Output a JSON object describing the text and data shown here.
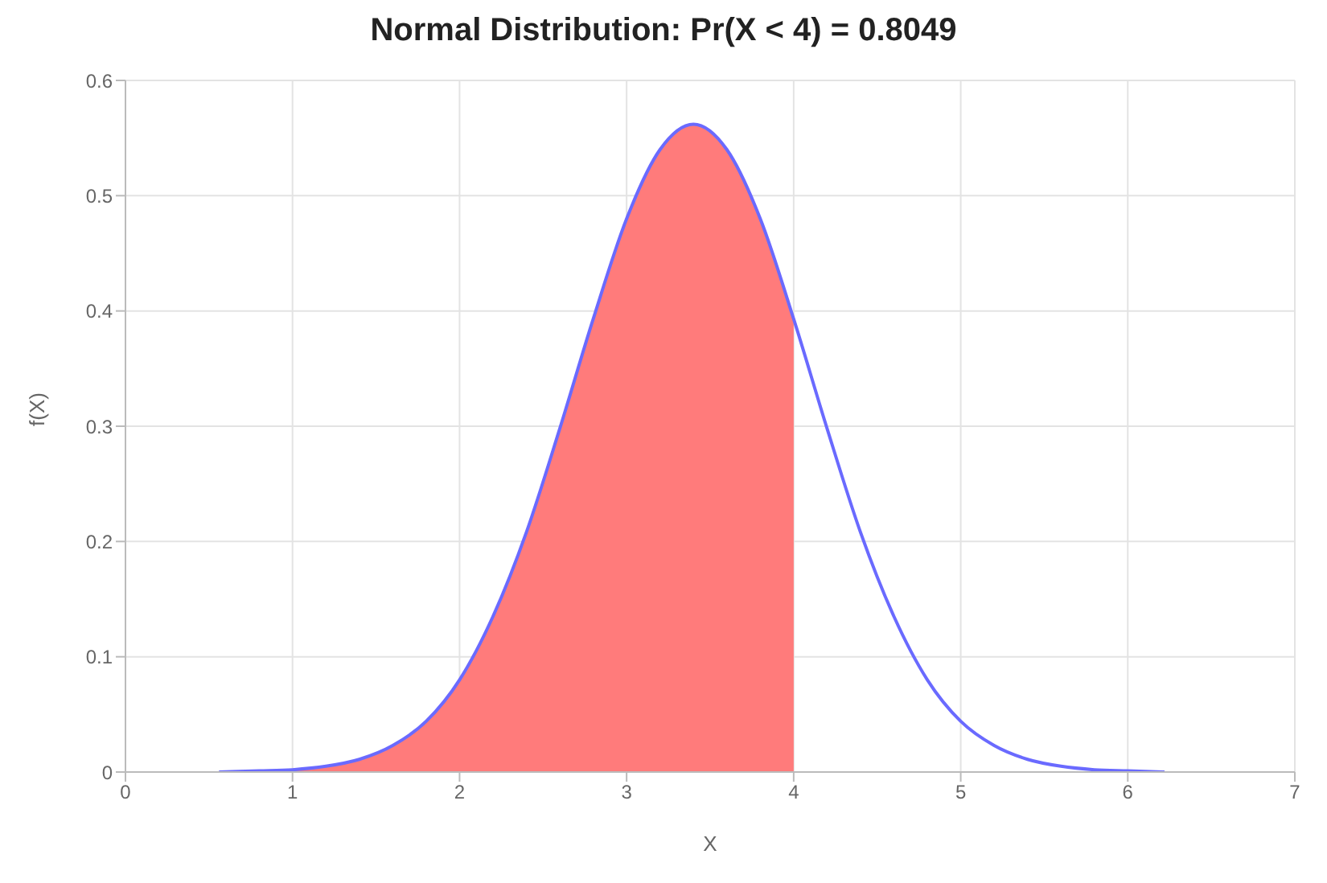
{
  "chart_data": {
    "type": "line",
    "title": "Normal Distribution: Pr(X < 4) = 0.8049",
    "xlabel": "X",
    "ylabel": "f(X)",
    "xlim": [
      0,
      7
    ],
    "xticks": [
      0,
      1,
      2,
      3,
      4,
      5,
      6,
      7
    ],
    "ylim": [
      0,
      0.6
    ],
    "yticks": [
      0,
      0.1,
      0.2,
      0.3,
      0.4,
      0.5,
      0.6
    ],
    "grid": true,
    "legend": false,
    "marker": "none",
    "series": [
      {
        "type": "area",
        "color": "#ff7b7b",
        "x": [
          0.56,
          0.8,
          1.0,
          1.2,
          1.4,
          1.6,
          1.8,
          2.0,
          2.2,
          2.4,
          2.6,
          2.8,
          3.0,
          3.2,
          3.4,
          3.6,
          3.8,
          4.0
        ],
        "values": [
          0.0,
          0.001,
          0.002,
          0.005,
          0.011,
          0.023,
          0.044,
          0.08,
          0.135,
          0.208,
          0.298,
          0.393,
          0.48,
          0.54,
          0.562,
          0.54,
          0.48,
          0.393
        ]
      },
      {
        "type": "line",
        "color": "#6a6aff",
        "x": [
          0.56,
          0.8,
          1.0,
          1.2,
          1.4,
          1.6,
          1.8,
          2.0,
          2.2,
          2.4,
          2.6,
          2.8,
          3.0,
          3.2,
          3.4,
          3.6,
          3.8,
          4.0,
          4.2,
          4.4,
          4.6,
          4.8,
          5.0,
          5.2,
          5.4,
          5.6,
          5.8,
          6.0,
          6.22
        ],
        "values": [
          0.0,
          0.001,
          0.002,
          0.005,
          0.011,
          0.023,
          0.044,
          0.08,
          0.135,
          0.208,
          0.298,
          0.393,
          0.48,
          0.54,
          0.562,
          0.54,
          0.48,
          0.393,
          0.298,
          0.208,
          0.135,
          0.08,
          0.044,
          0.023,
          0.011,
          0.005,
          0.002,
          0.001,
          0.0
        ]
      }
    ]
  }
}
